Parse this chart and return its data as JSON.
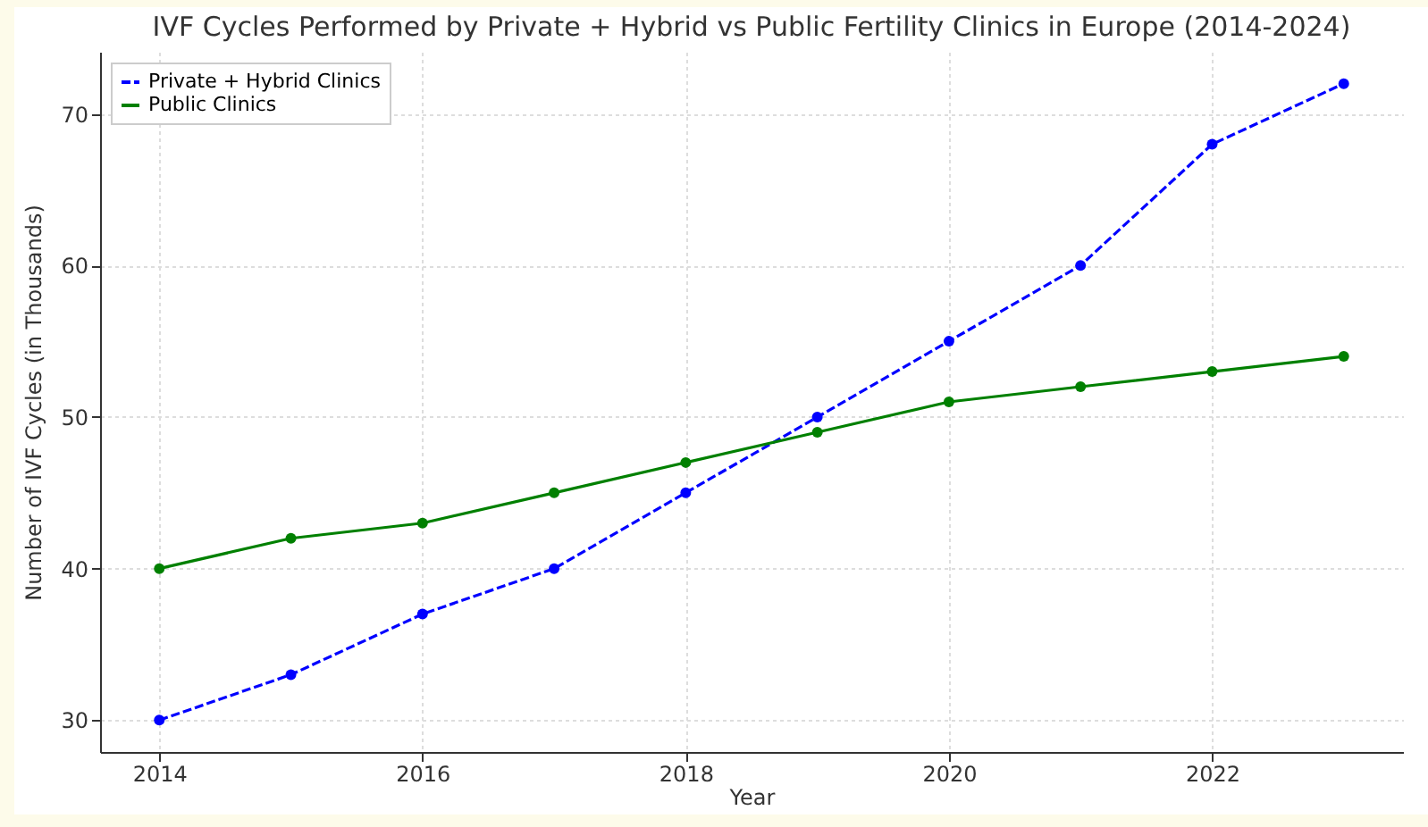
{
  "chart_data": {
    "type": "line",
    "title": "IVF Cycles Performed by Private + Hybrid vs Public Fertility Clinics in Europe (2014-2024)",
    "xlabel": "Year",
    "ylabel": "Number of IVF Cycles (in Thousands)",
    "x": [
      2014,
      2015,
      2016,
      2017,
      2018,
      2019,
      2020,
      2021,
      2022,
      2023
    ],
    "series": [
      {
        "name": "Private + Hybrid Clinics",
        "color": "#0000ff",
        "line_style": "dashed",
        "values": [
          30,
          33,
          37,
          40,
          45,
          50,
          55,
          60,
          68,
          72
        ]
      },
      {
        "name": "Public Clinics",
        "color": "#008000",
        "line_style": "solid",
        "values": [
          40,
          42,
          43,
          45,
          47,
          49,
          51,
          52,
          53,
          54
        ]
      }
    ],
    "xlim": [
      2013.55,
      2023.45
    ],
    "xticks": [
      2014,
      2016,
      2018,
      2020,
      2022
    ],
    "ylim": [
      27.9,
      74.1
    ],
    "yticks": [
      30,
      40,
      50,
      60,
      70
    ],
    "grid": true,
    "legend": "top left",
    "marker": "circle"
  }
}
